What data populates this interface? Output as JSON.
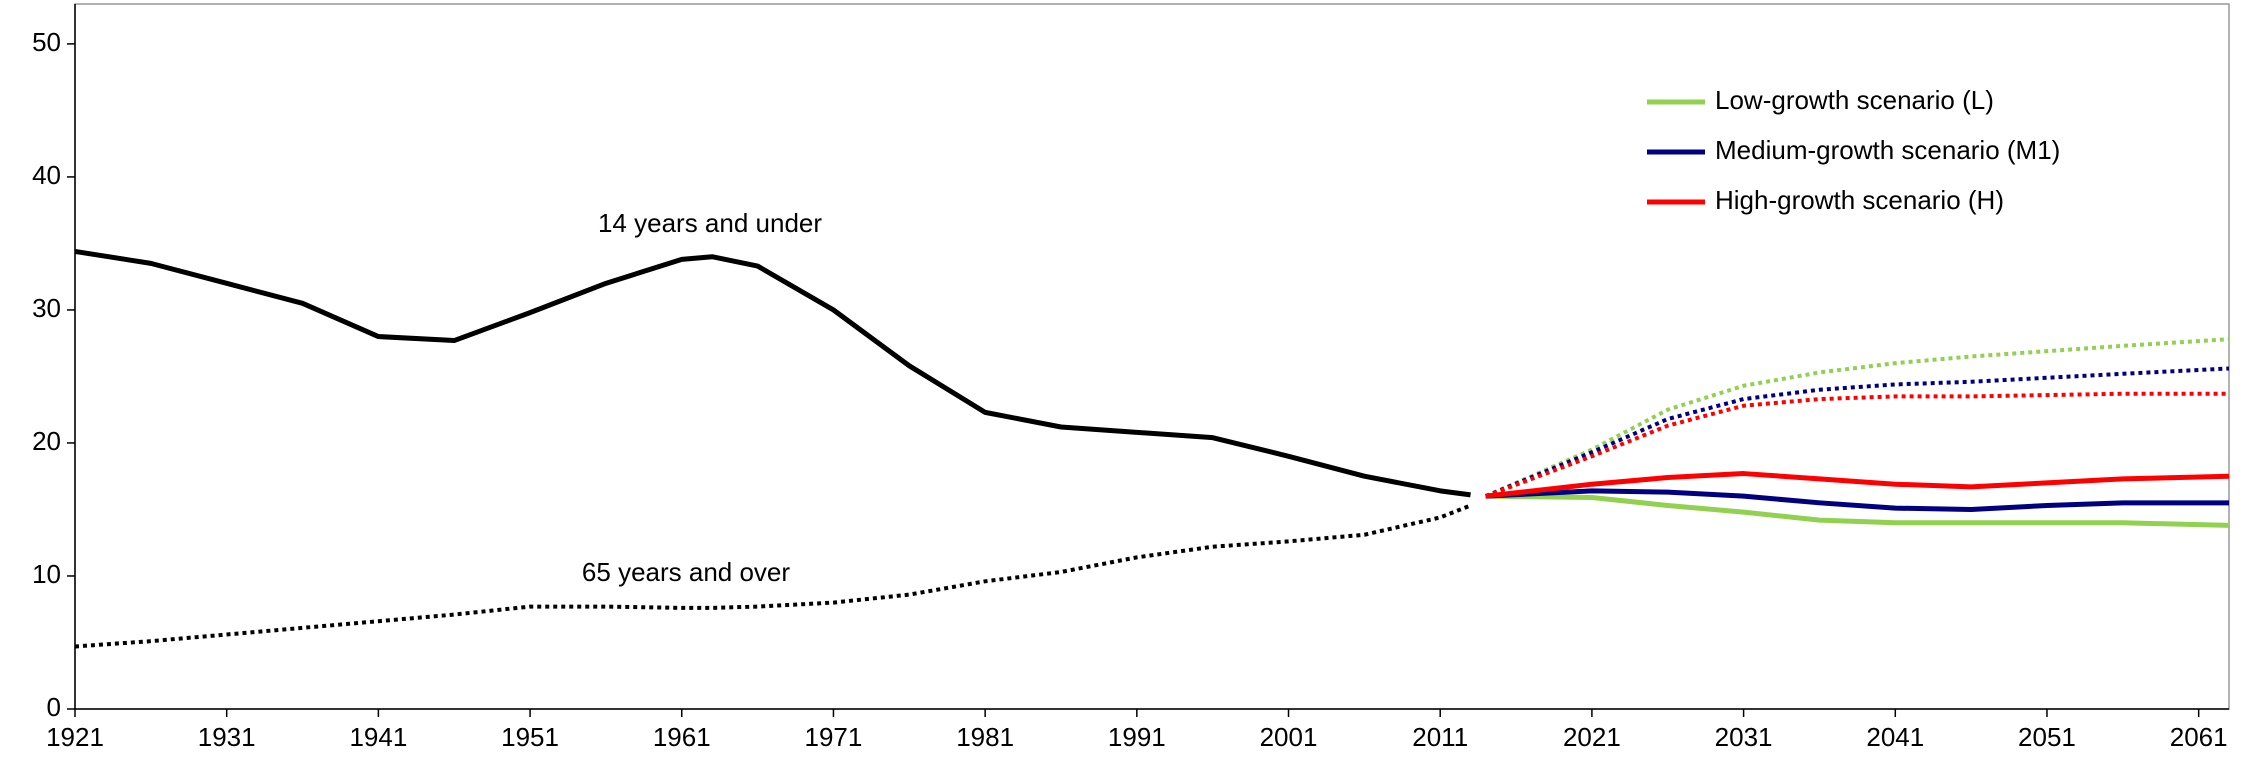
{
  "chart_data": {
    "type": "line",
    "xlim": [
      1921,
      2063
    ],
    "ylim": [
      0,
      53
    ],
    "xticks": [
      1921,
      1931,
      1941,
      1951,
      1961,
      1971,
      1981,
      1991,
      2001,
      2011,
      2021,
      2031,
      2041,
      2051,
      2061
    ],
    "yticks": [
      0,
      10,
      20,
      30,
      40,
      50
    ],
    "x": [
      1921,
      1926,
      1931,
      1936,
      1941,
      1946,
      1951,
      1956,
      1961,
      1963,
      1966,
      1971,
      1976,
      1981,
      1986,
      1991,
      1996,
      2001,
      2006,
      2011,
      2013
    ],
    "series": [
      {
        "name": "14 years and under",
        "color": "#000000",
        "style": "solid",
        "values": [
          34.4,
          33.5,
          32.0,
          30.5,
          28.0,
          27.7,
          29.8,
          32.0,
          33.8,
          34.0,
          33.3,
          30.0,
          25.8,
          22.3,
          21.2,
          20.8,
          20.4,
          19.0,
          17.5,
          16.4,
          16.1
        ]
      },
      {
        "name": "65 years and over",
        "color": "#000000",
        "style": "dotted",
        "values": [
          4.7,
          5.1,
          5.6,
          6.1,
          6.6,
          7.1,
          7.7,
          7.7,
          7.6,
          7.6,
          7.7,
          8.0,
          8.6,
          9.6,
          10.3,
          11.4,
          12.2,
          12.6,
          13.1,
          14.4,
          15.3
        ]
      }
    ],
    "projections": {
      "x": [
        2014,
        2021,
        2026,
        2031,
        2036,
        2041,
        2046,
        2051,
        2056,
        2063
      ],
      "scenarios": [
        {
          "name": "Low-growth scenario (L)",
          "color": "#92d050",
          "under_15": [
            16,
            15.9,
            15.3,
            14.8,
            14.2,
            14.0,
            14.0,
            14.0,
            14.0,
            13.8
          ],
          "over_64": [
            16,
            19.5,
            22.5,
            24.3,
            25.3,
            26.0,
            26.5,
            26.9,
            27.3,
            27.8
          ]
        },
        {
          "name": "Medium-growth scenario (M1)",
          "color": "#000080",
          "under_15": [
            16,
            16.4,
            16.3,
            16.0,
            15.5,
            15.1,
            15.0,
            15.3,
            15.5,
            15.5
          ],
          "over_64": [
            16,
            19.3,
            21.8,
            23.3,
            24.0,
            24.4,
            24.6,
            24.9,
            25.2,
            25.6
          ]
        },
        {
          "name": "High-growth scenario (H)",
          "color": "#ff0000",
          "under_15": [
            16,
            16.9,
            17.4,
            17.7,
            17.3,
            16.9,
            16.7,
            17.0,
            17.3,
            17.5
          ],
          "over_64": [
            16,
            19.0,
            21.3,
            22.8,
            23.3,
            23.5,
            23.5,
            23.6,
            23.7,
            23.7
          ]
        }
      ]
    }
  }
}
